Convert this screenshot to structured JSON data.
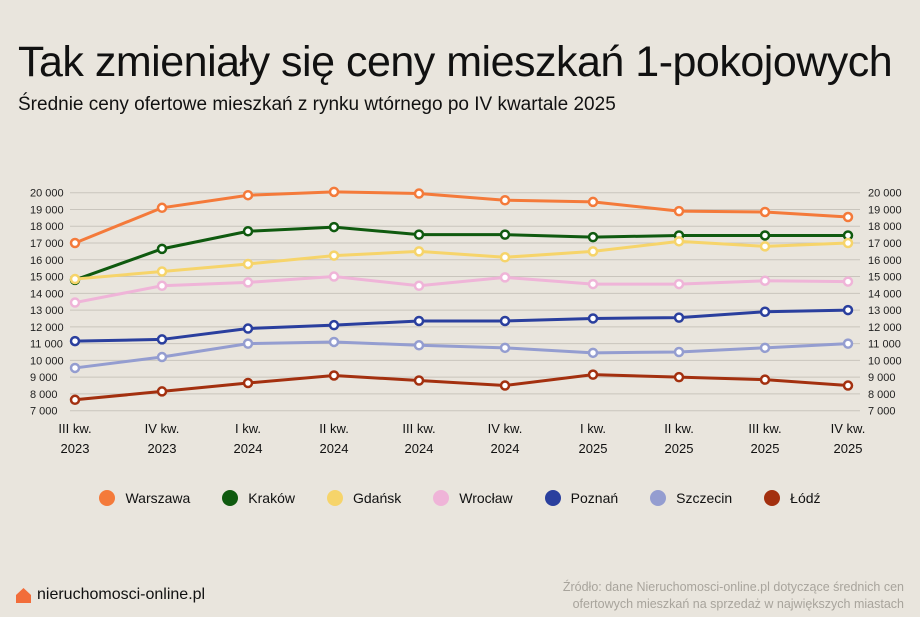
{
  "header": {
    "title": "Tak zmieniały się ceny mieszkań 1-pokojowych",
    "subtitle": "Średnie ceny ofertowe mieszkań z rynku wtórnego po IV kwartale 2025"
  },
  "chart_data": {
    "type": "line",
    "title": "Tak zmieniały się ceny mieszkań 1-pokojowych",
    "subtitle": "Średnie ceny ofertowe mieszkań z rynku wtórnego po IV kwartale 2025",
    "categories": [
      [
        "III kw.",
        "2023"
      ],
      [
        "IV kw.",
        "2023"
      ],
      [
        "I kw.",
        "2024"
      ],
      [
        "II kw.",
        "2024"
      ],
      [
        "III kw.",
        "2024"
      ],
      [
        "IV kw.",
        "2024"
      ],
      [
        "I kw.",
        "2025"
      ],
      [
        "II kw.",
        "2025"
      ],
      [
        "III kw.",
        "2025"
      ],
      [
        "IV kw.",
        "2025"
      ]
    ],
    "ylim": [
      7000,
      20000
    ],
    "yticks": [
      "7 000",
      "8 000",
      "9 000",
      "10 000",
      "11 000",
      "12 000",
      "13 000",
      "14 000",
      "15 000",
      "16 000",
      "17 000",
      "18 000",
      "19 000",
      "20 000"
    ],
    "grid": true,
    "legend": "bottom",
    "series": [
      {
        "name": "Warszawa",
        "color": "#f47a3a",
        "values": [
          17000,
          19100,
          19850,
          20050,
          19950,
          19550,
          19450,
          18900,
          18850,
          18550
        ]
      },
      {
        "name": "Kraków",
        "color": "#0f5a0f",
        "values": [
          14800,
          16650,
          17700,
          17950,
          17500,
          17500,
          17350,
          17450,
          17450,
          17450
        ]
      },
      {
        "name": "Gdańsk",
        "color": "#f6d46a",
        "values": [
          14850,
          15300,
          15750,
          16250,
          16500,
          16150,
          16500,
          17100,
          16800,
          17000
        ]
      },
      {
        "name": "Wrocław",
        "color": "#efb4d8",
        "values": [
          13450,
          14450,
          14650,
          15000,
          14450,
          14950,
          14550,
          14550,
          14750,
          14700
        ]
      },
      {
        "name": "Poznań",
        "color": "#2a3f9e",
        "values": [
          11150,
          11250,
          11900,
          12100,
          12350,
          12350,
          12500,
          12550,
          12900,
          13000
        ]
      },
      {
        "name": "Szczecin",
        "color": "#949dd0",
        "values": [
          9550,
          10200,
          11000,
          11100,
          10900,
          10750,
          10450,
          10500,
          10750,
          11000
        ]
      },
      {
        "name": "Łódź",
        "color": "#a3300f",
        "values": [
          7650,
          8150,
          8650,
          9100,
          8800,
          8500,
          9150,
          9000,
          8850,
          8500
        ]
      }
    ]
  },
  "footer": {
    "brand": "nieruchomosci-online.pl",
    "brand_color": "#f26d3a",
    "source_line1": "Źródło: dane Nieruchomosci-online.pl dotyczące średnich cen",
    "source_line2": "ofertowych mieszkań na sprzedaż w największych miastach"
  }
}
